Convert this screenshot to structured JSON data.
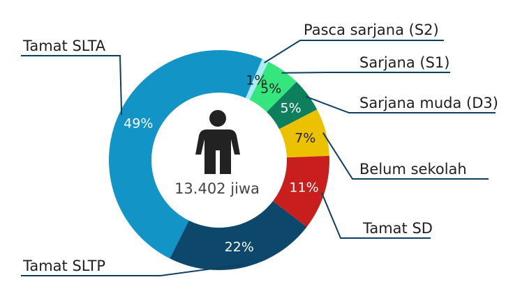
{
  "chart_data": {
    "type": "pie",
    "variant": "donut",
    "title": "",
    "start_angle_deg": 23,
    "categories": [
      "Pasca sarjana  (S2)",
      "Sarjana  (S1)",
      "Sarjana muda (D3)",
      "Belum sekolah",
      "Tamat SD",
      "Tamat SLTP",
      "Tamat SLTA"
    ],
    "values": [
      1,
      5,
      5,
      7,
      11,
      22,
      49
    ],
    "value_labels": [
      "1%",
      "5%",
      "5%",
      "7%",
      "11%",
      "22%",
      "49%"
    ],
    "colors": [
      "#aeeaf7",
      "#35e67f",
      "#0d7f5c",
      "#ecc100",
      "#c81e1e",
      "#0d476b",
      "#1295c6"
    ],
    "pct_text_colors": [
      "#1f1f1f",
      "#1f1f1f",
      "#ffffff",
      "#1f1f1f",
      "#ffffff",
      "#ffffff",
      "#ffffff"
    ],
    "center_icon": "person-icon",
    "center_label": "13.402 jiwa"
  }
}
